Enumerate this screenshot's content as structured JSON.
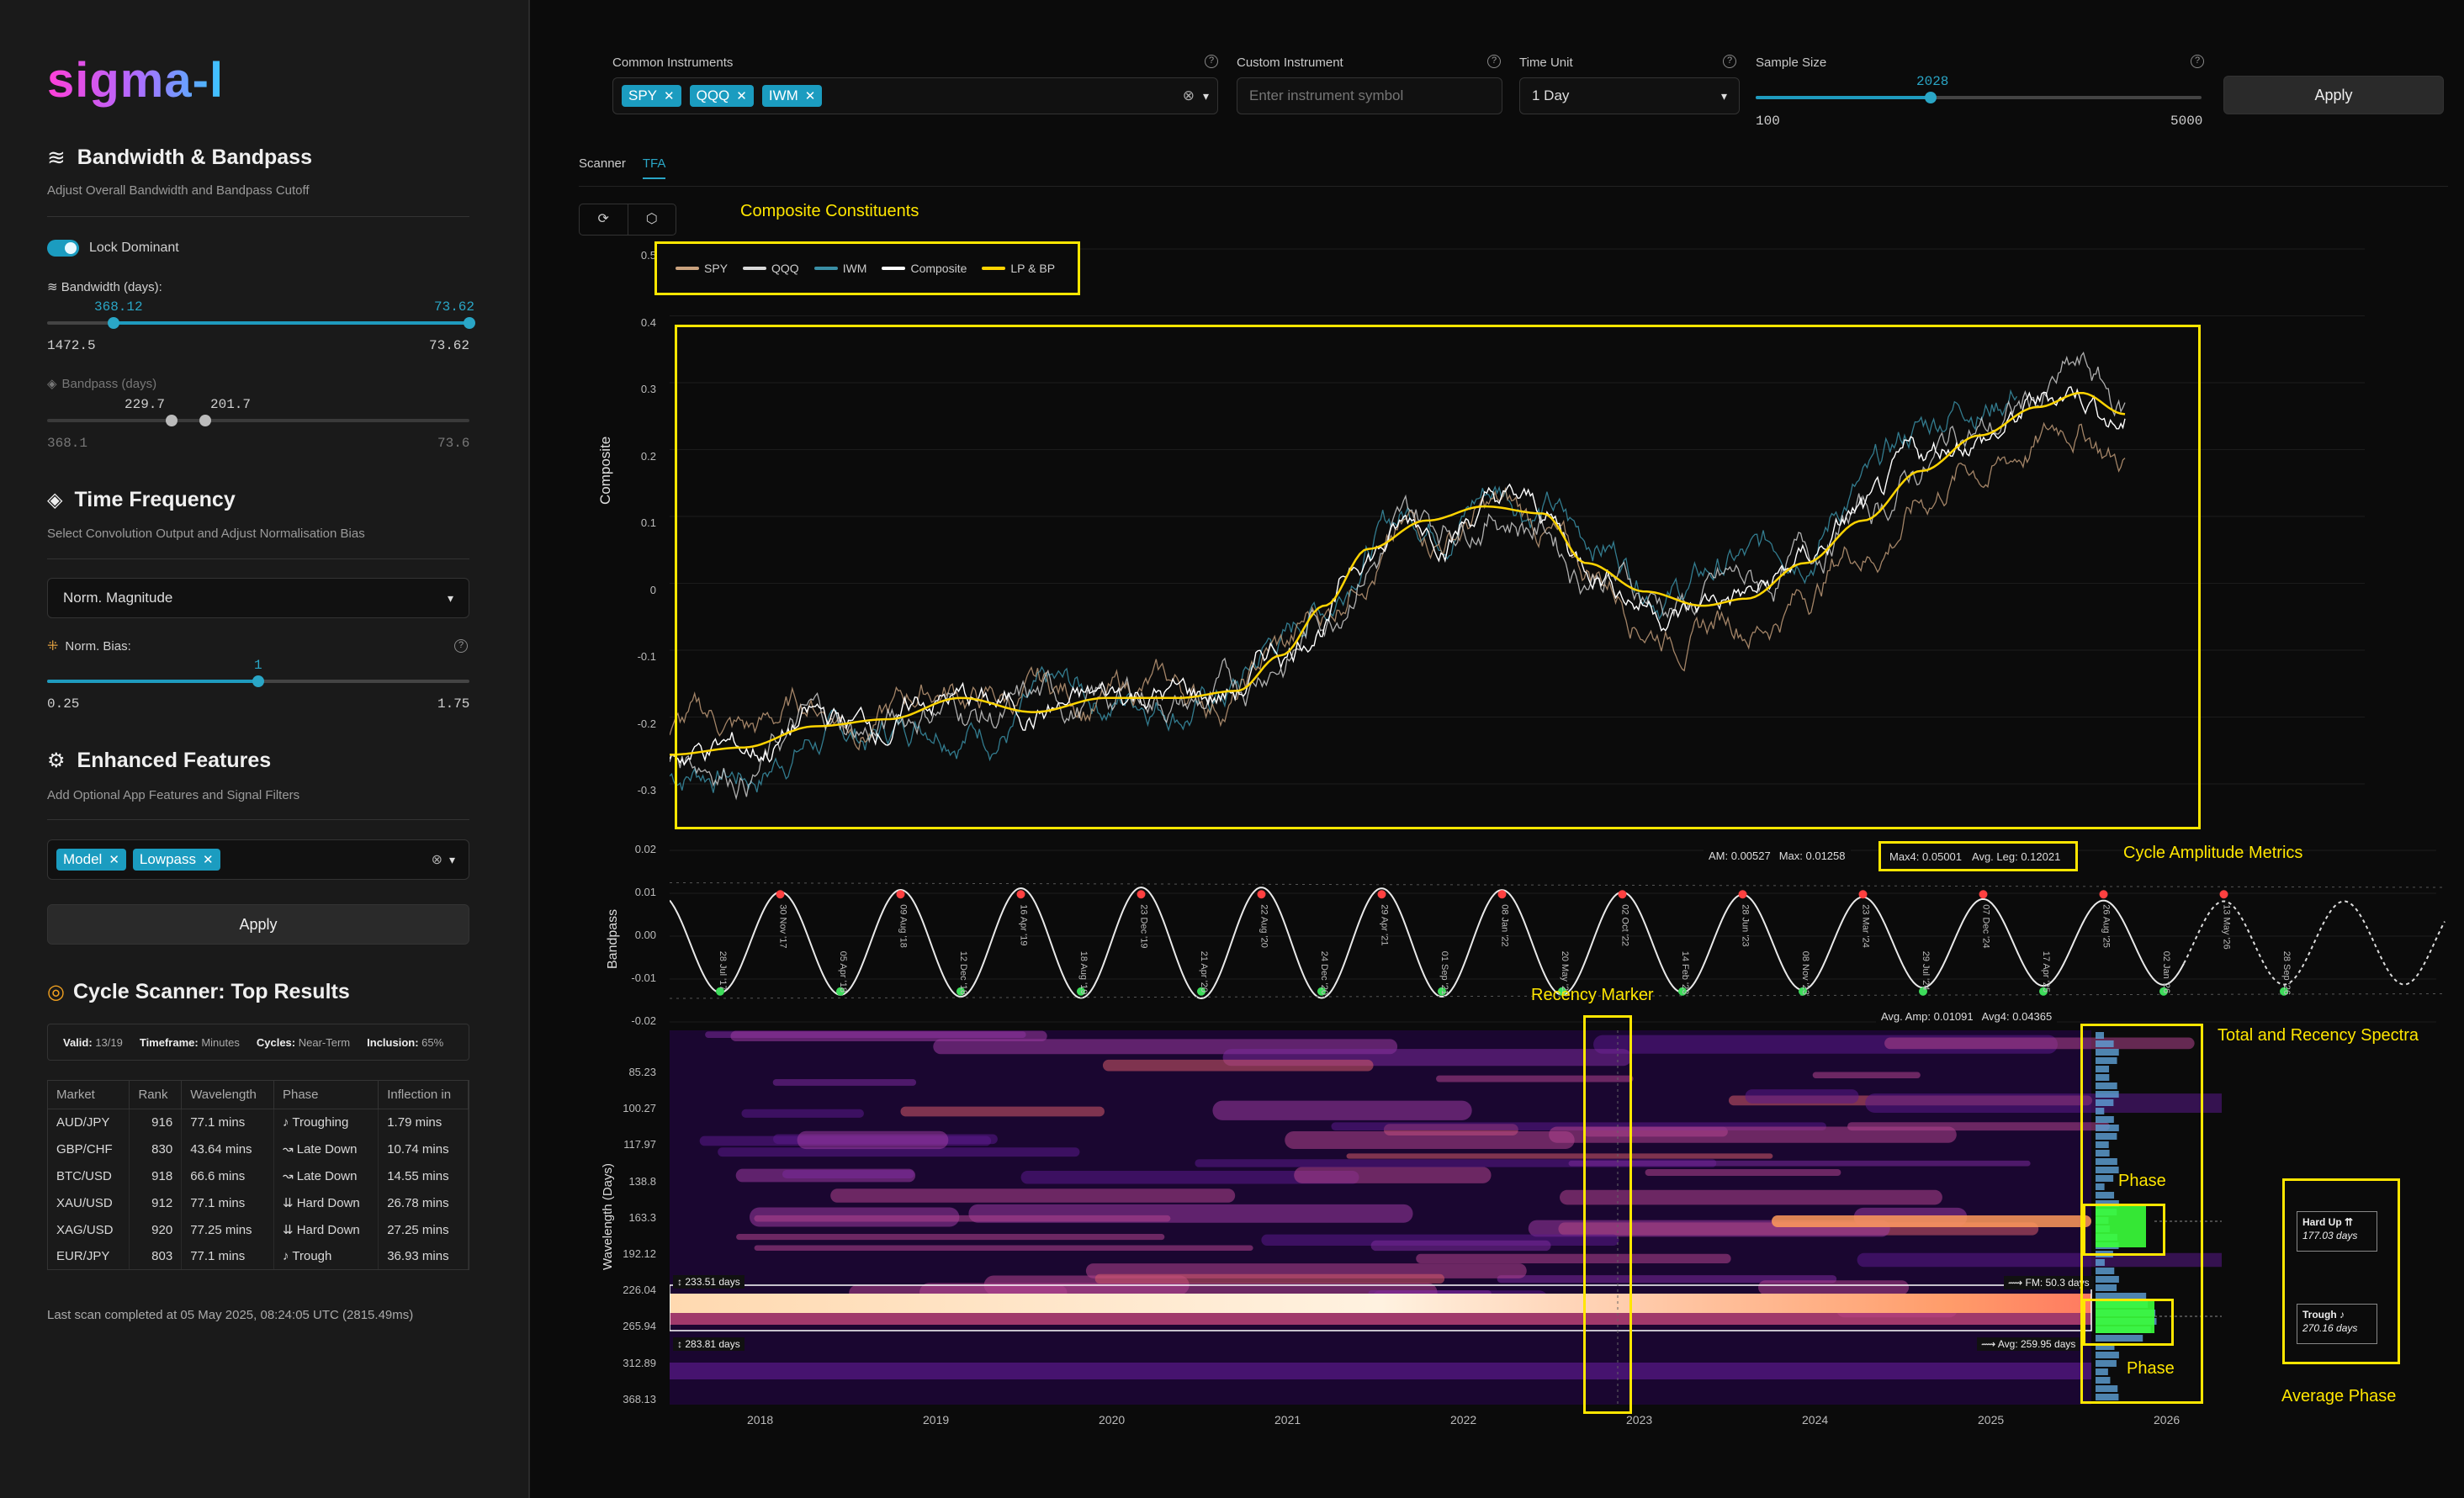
{
  "app": {
    "logo": "sigma-l"
  },
  "sidebar": {
    "bandwidth": {
      "title": "Bandwidth & Bandpass",
      "subtitle": "Adjust Overall Bandwidth and Bandpass Cutoff",
      "lock_label": "Lock Dominant",
      "lock_on": true,
      "bw_label": "≋ Bandwidth (days):",
      "bw_low": "368.12",
      "bw_high": "73.62",
      "bw_min": "1472.5",
      "bw_max": "73.62",
      "bp_label": "Bandpass (days)",
      "bp_low": "229.7",
      "bp_high": "201.7",
      "bp_min": "368.1",
      "bp_max": "73.6"
    },
    "time_frequency": {
      "title": "Time Frequency",
      "subtitle": "Select Convolution Output and Adjust Normalisation Bias",
      "output_select": "Norm. Magnitude",
      "bias_label": "Norm. Bias:",
      "bias_value": "1",
      "bias_min": "0.25",
      "bias_max": "1.75",
      "bias_fraction": 0.5
    },
    "enhanced": {
      "title": "Enhanced Features",
      "subtitle": "Add Optional App Features and Signal Filters",
      "tags": [
        "Model",
        "Lowpass"
      ],
      "apply": "Apply"
    },
    "scanner": {
      "title": "Cycle Scanner: Top Results",
      "stats": {
        "valid_label": "Valid:",
        "valid": "13/19",
        "tf_label": "Timeframe:",
        "tf": "Minutes",
        "cycles_label": "Cycles:",
        "cycles": "Near-Term",
        "incl_label": "Inclusion:",
        "incl": "65%"
      },
      "columns": [
        "Market",
        "Rank",
        "Wavelength",
        "Phase",
        "Inflection in"
      ],
      "rows": [
        [
          "AUD/JPY",
          "916",
          "77.1 mins",
          "♪ Troughing",
          "1.79 mins"
        ],
        [
          "GBP/CHF",
          "830",
          "43.64 mins",
          "↝ Late Down",
          "10.74 mins"
        ],
        [
          "BTC/USD",
          "918",
          "66.6 mins",
          "↝ Late Down",
          "14.55 mins"
        ],
        [
          "XAU/USD",
          "912",
          "77.1 mins",
          "⇊ Hard Down",
          "26.78 mins"
        ],
        [
          "XAG/USD",
          "920",
          "77.25 mins",
          "⇊ Hard Down",
          "27.25 mins"
        ],
        [
          "EUR/JPY",
          "803",
          "77.1 mins",
          "♪ Trough",
          "36.93 mins"
        ]
      ],
      "footer": "Last scan completed at 05 May 2025, 08:24:05 UTC (2815.49ms)"
    }
  },
  "toolbar": {
    "common_label": "Common Instruments",
    "common_tags": [
      "SPY",
      "QQQ",
      "IWM"
    ],
    "custom_label": "Custom Instrument",
    "custom_placeholder": "Enter instrument symbol",
    "time_unit_label": "Time Unit",
    "time_unit": "1 Day",
    "sample_label": "Sample Size",
    "sample_value": "2028",
    "sample_min": "100",
    "sample_max": "5000",
    "sample_fraction": 0.393,
    "apply": "Apply"
  },
  "tabs": [
    {
      "label": "Scanner",
      "active": false
    },
    {
      "label": "TFA",
      "active": true
    }
  ],
  "annotations": {
    "composite": "Composite Constituents",
    "cycle_amp": "Cycle Amplitude Metrics",
    "recency": "Recency Marker",
    "spectra": "Total and Recency Spectra",
    "phase_top": "Phase",
    "phase_bottom": "Phase",
    "avg_phase": "Average Phase"
  },
  "composite_chart": {
    "ylabel": "Composite",
    "legend": [
      "SPY",
      "QQQ",
      "IWM",
      "Composite",
      "LP & BP"
    ],
    "colors": {
      "SPY": "#c9a27e",
      "QQQ": "#d8d8d8",
      "IWM": "#3a8fa6",
      "Composite": "#ffffff",
      "LP & BP": "#ffd400"
    },
    "yticks": [
      "0.5",
      "0.4",
      "0.3",
      "0.2",
      "0.1",
      "0",
      "-0.1",
      "-0.2",
      "-0.3"
    ]
  },
  "bandpass_chart": {
    "ylabel": "Bandpass",
    "yticks": [
      "0.02",
      "0.01",
      "0.00",
      "-0.01",
      "-0.02"
    ],
    "metrics": {
      "am": "AM: 0.00527",
      "max": "Max: 0.01258",
      "max4": "Max4: 0.05001",
      "avg_leg": "Avg. Leg: 0.12021"
    },
    "peaks": [
      "30 Nov '17",
      "09 Aug '18",
      "16 Apr '19",
      "23 Dec '19",
      "22 Aug '20",
      "29 Apr '21",
      "08 Jan '22",
      "02 Oct '22",
      "28 Jun '23",
      "23 Mar '24",
      "07 Dec '24",
      "26 Aug '25",
      "13 May '26"
    ],
    "troughs": [
      "28 Jul '17",
      "05 Apr '18",
      "12 Dec '18",
      "18 Aug '19",
      "21 Apr '20",
      "24 Dec '20",
      "01 Sep '21",
      "20 May '22",
      "14 Feb '23",
      "08 Nov '23",
      "29 Jul '24",
      "17 Apr '25",
      "02 Jan '26",
      "28 Sep '26"
    ]
  },
  "spectrum": {
    "ylabel": "Wavelength (Days)",
    "yticks": [
      "85.23",
      "100.27",
      "117.97",
      "138.8",
      "163.3",
      "192.12",
      "226.04",
      "265.94",
      "312.89",
      "368.13"
    ],
    "xticks": [
      "2018",
      "2019",
      "2020",
      "2021",
      "2022",
      "2023",
      "2024",
      "2025",
      "2026"
    ],
    "metrics": {
      "avg_amp": "Avg. Amp: 0.01091",
      "avg4": "Avg4: 0.04365"
    },
    "band_top": "233.51 days",
    "band_bottom": "283.81 days",
    "fm": "FM: 50.3 days",
    "avg_days": "Avg: 259.95 days",
    "phase_cards": [
      {
        "title": "Hard Up ⇈",
        "days": "177.03 days"
      },
      {
        "title": "Trough ♪",
        "days": "270.16 days"
      }
    ]
  }
}
